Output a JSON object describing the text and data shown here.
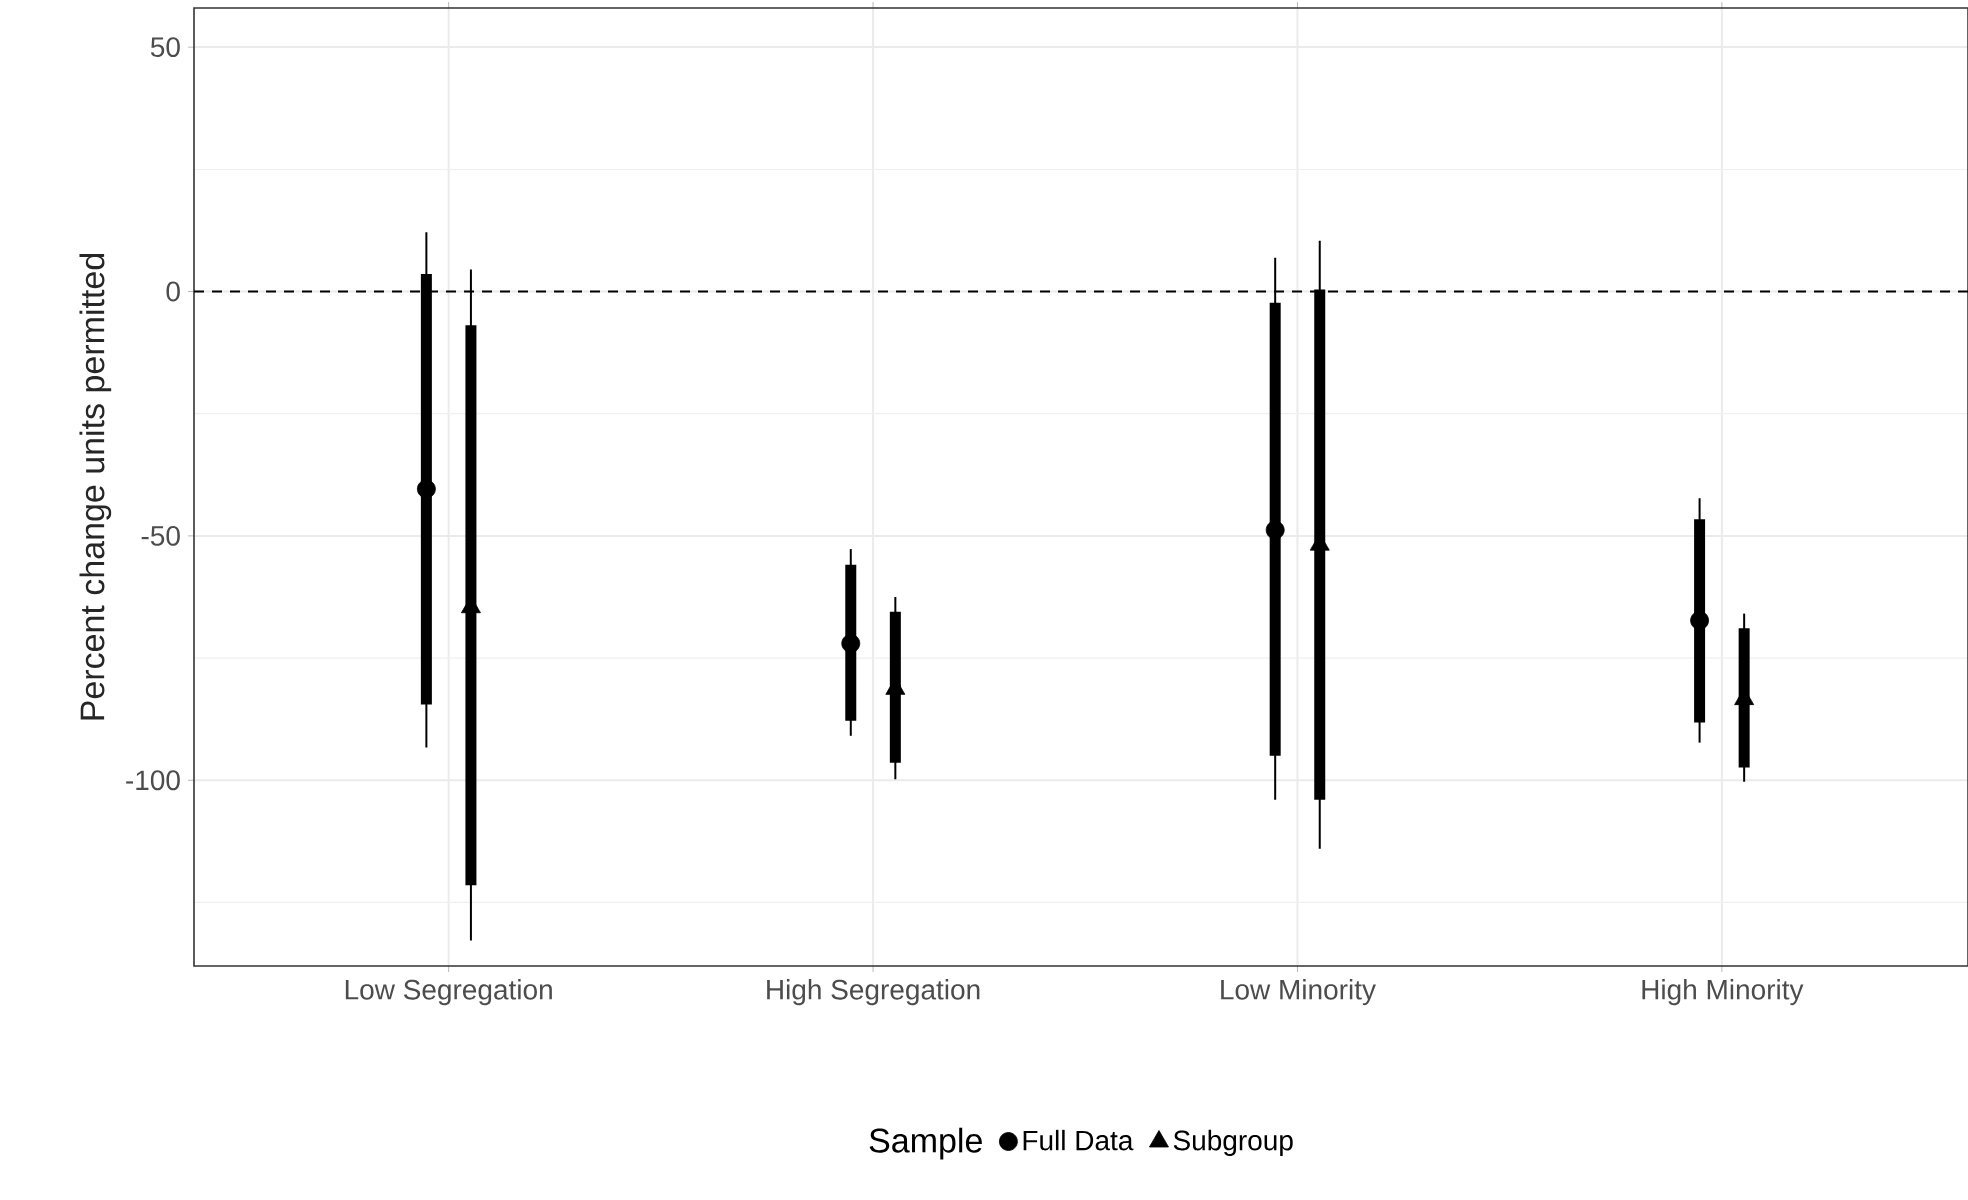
{
  "chart_data": {
    "type": "scatter",
    "ylabel": "Percent change units permitted",
    "legend_title": "Sample",
    "categories": [
      "Low Segregation",
      "High Segregation",
      "Low Minority",
      "High Minority"
    ],
    "series": [
      {
        "type": "bar",
        "color": "#000000",
        "base": [
          -84.5,
          -87.8,
          -95.0,
          -88.2
        ],
        "values": [
          88.1,
          31.9,
          92.7,
          41.6
        ]
      },
      {
        "type": "bar",
        "color": "#000000",
        "base": [
          -121.5,
          -96.4,
          -104.0,
          -97.4
        ],
        "values": [
          114.6,
          30.9,
          104.4,
          28.5
        ]
      },
      {
        "name": "Full Data",
        "color": "#000000",
        "marker": "circle",
        "values": [
          -40.4,
          -72.0,
          -48.8,
          -67.3
        ],
        "errors": [
          [
            -93.3,
            12.1
          ],
          [
            -90.9,
            -52.7
          ],
          [
            -104.0,
            6.9
          ],
          [
            -92.3,
            -42.3
          ]
        ]
      },
      {
        "name": "Subgroup",
        "color": "#000000",
        "marker": "triangle",
        "values": [
          -64.6,
          -81.3,
          -51.8,
          -83.4
        ],
        "errors": [
          [
            -132.8,
            4.5
          ],
          [
            -99.8,
            -62.5
          ],
          [
            -114.0,
            10.4
          ],
          [
            -100.3,
            -65.9
          ]
        ]
      }
    ],
    "ylim": [
      -138,
      58
    ],
    "yticks": [
      -100,
      -50,
      0,
      50
    ],
    "grid": true,
    "legend": "bottom",
    "ref_lines": [
      {
        "axis": "y",
        "value": 0,
        "line_style": "dashed",
        "color": "#000000"
      }
    ]
  }
}
